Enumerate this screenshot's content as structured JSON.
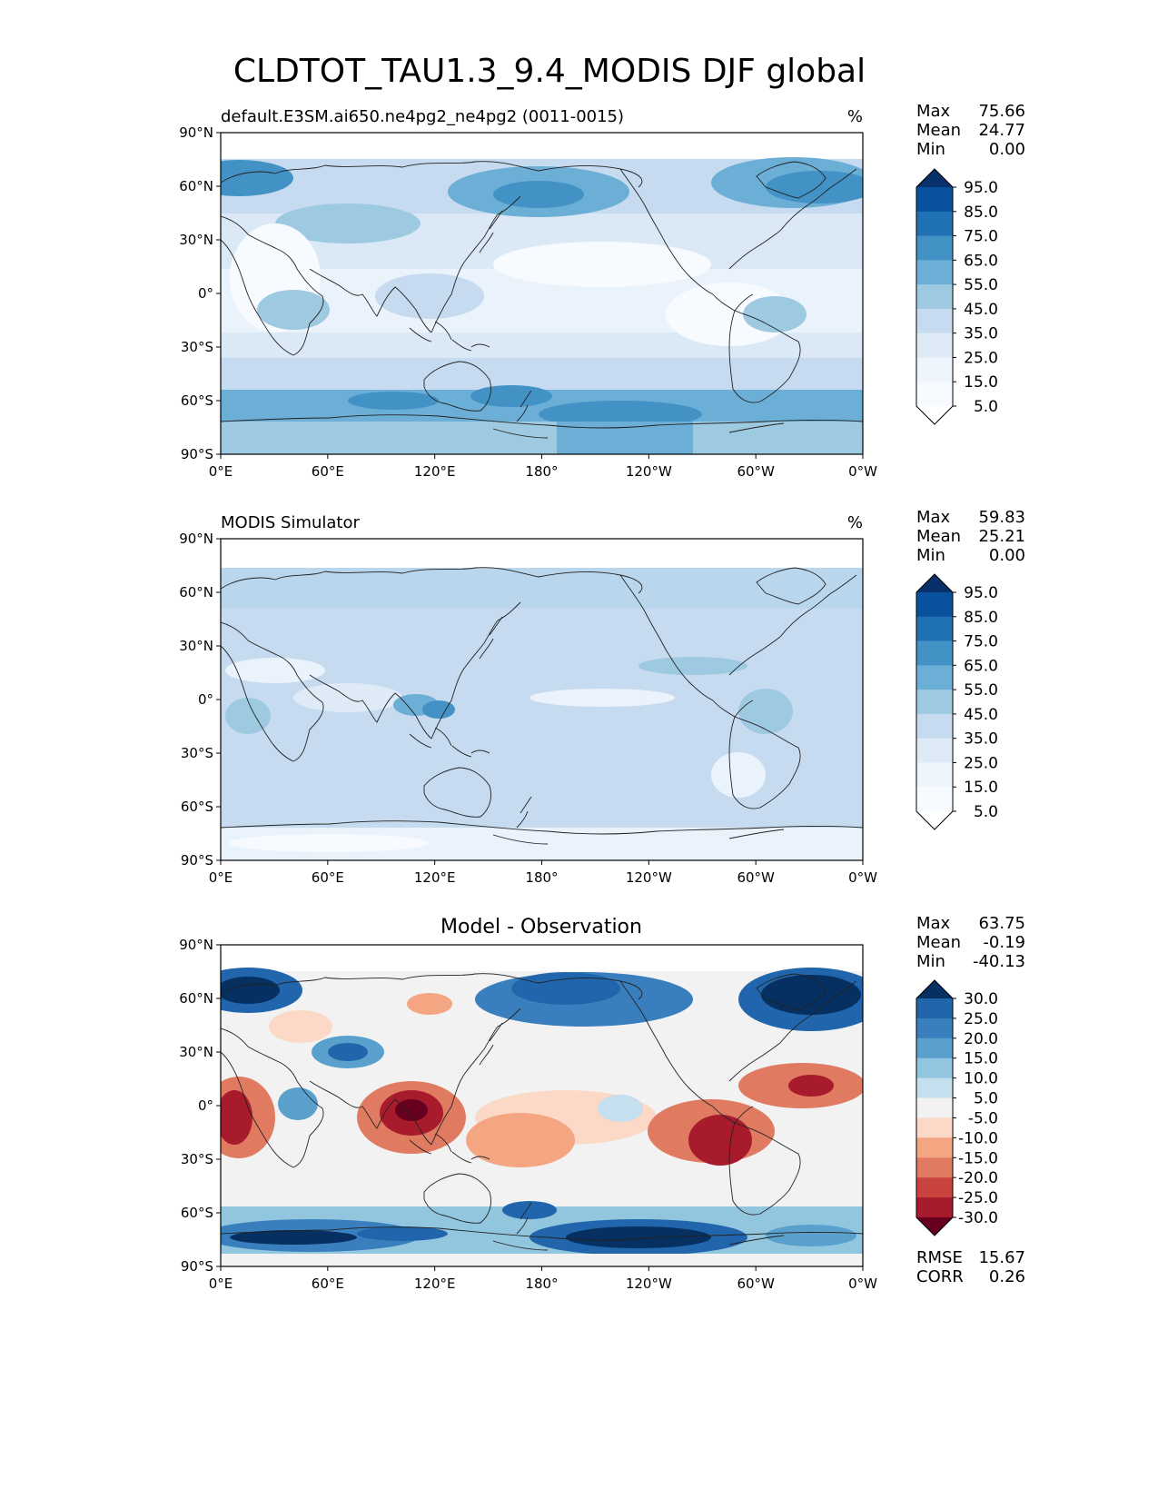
{
  "figure": {
    "title": "CLDTOT_TAU1.3_9.4_MODIS DJF global"
  },
  "axes": {
    "lat_ticks": [
      "90°N",
      "60°N",
      "30°N",
      "0°",
      "30°S",
      "60°S",
      "90°S"
    ],
    "lon_ticks": [
      "0°E",
      "60°E",
      "120°E",
      "180°",
      "120°W",
      "60°W",
      "0°W"
    ]
  },
  "panels": [
    {
      "title": "default.E3SM.ai650.ne4pg2_ne4pg2 (0011-0015)",
      "units": "%",
      "stats": [
        {
          "label": "Max",
          "value": "75.66"
        },
        {
          "label": "Mean",
          "value": "24.77"
        },
        {
          "label": "Min",
          "value": "0.00"
        }
      ],
      "colorbar": {
        "levels": [
          "95.0",
          "85.0",
          "75.0",
          "65.0",
          "55.0",
          "45.0",
          "35.0",
          "25.0",
          "15.0",
          "5.0"
        ],
        "colors": [
          "#08306b",
          "#08519c",
          "#2171b5",
          "#4292c6",
          "#6baed6",
          "#9ecae1",
          "#c6dbef",
          "#deebf7",
          "#eef5fc",
          "#f7fbff",
          "#ffffff"
        ]
      }
    },
    {
      "title": "MODIS Simulator",
      "units": "%",
      "stats": [
        {
          "label": "Max",
          "value": "59.83"
        },
        {
          "label": "Mean",
          "value": "25.21"
        },
        {
          "label": "Min",
          "value": "0.00"
        }
      ],
      "colorbar": {
        "levels": [
          "95.0",
          "85.0",
          "75.0",
          "65.0",
          "55.0",
          "45.0",
          "35.0",
          "25.0",
          "15.0",
          "5.0"
        ],
        "colors": [
          "#08306b",
          "#08519c",
          "#2171b5",
          "#4292c6",
          "#6baed6",
          "#9ecae1",
          "#c6dbef",
          "#deebf7",
          "#eef5fc",
          "#f7fbff",
          "#ffffff"
        ]
      }
    },
    {
      "title": "Model - Observation",
      "units": "",
      "stats": [
        {
          "label": "Max",
          "value": "63.75"
        },
        {
          "label": "Mean",
          "value": "-0.19"
        },
        {
          "label": "Min",
          "value": "-40.13"
        }
      ],
      "extra_stats": [
        {
          "label": "RMSE",
          "value": "15.67"
        },
        {
          "label": "CORR",
          "value": "0.26"
        }
      ],
      "colorbar": {
        "levels": [
          "30.0",
          "25.0",
          "20.0",
          "15.0",
          "10.0",
          "5.0",
          "-5.0",
          "-10.0",
          "-15.0",
          "-20.0",
          "-25.0",
          "-30.0"
        ],
        "colors": [
          "#053061",
          "#2166ac",
          "#3a7fbd",
          "#5aa0cd",
          "#92c5de",
          "#c6dfee",
          "#f2f2f2",
          "#fbd9c6",
          "#f4a582",
          "#e07b62",
          "#c9433f",
          "#a81b2d",
          "#67001f"
        ]
      }
    }
  ]
}
